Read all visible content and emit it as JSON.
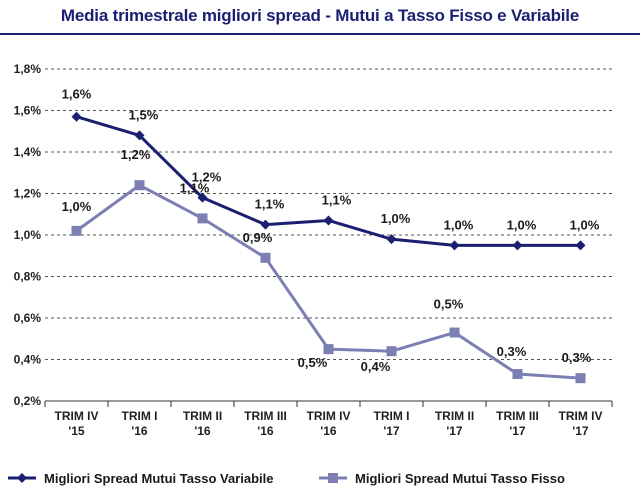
{
  "chart_data": {
    "type": "line",
    "title": "Media trimestrale migliori spread - Mutui a Tasso Fisso e Variabile",
    "categories": [
      [
        "TRIM IV",
        "'15"
      ],
      [
        "TRIM I",
        "'16"
      ],
      [
        "TRIM II",
        "'16"
      ],
      [
        "TRIM III",
        "'16"
      ],
      [
        "TRIM IV",
        "'16"
      ],
      [
        "TRIM I",
        "'17"
      ],
      [
        "TRIM II",
        "'17"
      ],
      [
        "TRIM III",
        "'17"
      ],
      [
        "TRIM IV",
        "'17"
      ]
    ],
    "yticks": [
      "0,2%",
      "0,4%",
      "0,6%",
      "0,8%",
      "1,0%",
      "1,2%",
      "1,4%",
      "1,6%",
      "1,8%"
    ],
    "ylim": [
      0.2,
      1.8
    ],
    "grid": "horizontal-dashed",
    "legend_position": "bottom",
    "series": [
      {
        "name": "Migliori Spread Mutui Tasso Variabile",
        "color": "#1a1f71",
        "marker": "diamond",
        "values": [
          1.57,
          1.48,
          1.18,
          1.05,
          1.07,
          0.98,
          0.95,
          0.95,
          0.95
        ],
        "labels": [
          "1,6%",
          "1,5%",
          "1,2%",
          "1,1%",
          "1,1%",
          "1,0%",
          "1,0%",
          "1,0%",
          "1,0%"
        ]
      },
      {
        "name": "Migliori Spread Mutui Tasso Fisso",
        "color": "#7b7fb3",
        "marker": "square",
        "values": [
          1.02,
          1.24,
          1.08,
          0.89,
          0.45,
          0.44,
          0.53,
          0.33,
          0.31
        ],
        "labels": [
          "1,0%",
          "1,2%",
          "1,1%",
          "0,9%",
          "0,5%",
          "0,4%",
          "0,5%",
          "0,3%",
          "0,3%"
        ]
      }
    ]
  }
}
